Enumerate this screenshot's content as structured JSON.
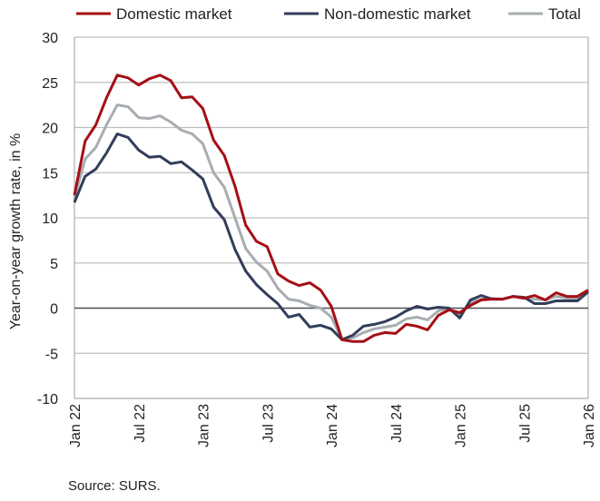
{
  "chart_data": {
    "type": "line",
    "title": "",
    "xlabel": "",
    "ylabel": "Year-on-year growth rate, in %",
    "ylim": [
      -10,
      30
    ],
    "yticks": [
      -10,
      -5,
      0,
      5,
      10,
      15,
      20,
      25,
      30
    ],
    "grid": true,
    "legend_position": "top",
    "x_tick_labels": [
      "Jan 22",
      "Jul 22",
      "Jan 23",
      "Jul 23",
      "Jan 24",
      "Jul 24",
      "Jan 25",
      "Jul 25",
      "Jan 26"
    ],
    "x_start": "Jan 2022",
    "x_end": "Jan 2026",
    "frequency": "monthly",
    "series": [
      {
        "name": "Domestic market",
        "color": "#A50F15",
        "values": [
          12.5,
          18.5,
          20.3,
          23.3,
          25.8,
          25.5,
          24.7,
          25.4,
          25.8,
          25.2,
          23.3,
          23.4,
          22.1,
          18.6,
          16.9,
          13.5,
          9.2,
          7.4,
          6.8,
          3.8,
          3.0,
          2.5,
          2.8,
          2.0,
          0.2,
          -3.5,
          -3.7,
          -3.7,
          -3.0,
          -2.7,
          -2.8,
          -1.8,
          -2.0,
          -2.4,
          -0.8,
          -0.2,
          -0.5,
          0.3,
          0.9,
          1.0,
          1.0,
          1.3,
          1.1,
          1.4,
          0.9,
          1.7,
          1.3,
          1.3,
          2.0
        ]
      },
      {
        "name": "Non-domestic market",
        "color": "#323E5A",
        "values": [
          11.7,
          14.6,
          15.4,
          17.2,
          19.3,
          18.9,
          17.5,
          16.7,
          16.8,
          16.0,
          16.2,
          15.3,
          14.3,
          11.2,
          9.8,
          6.5,
          4.1,
          2.6,
          1.5,
          0.5,
          -1.0,
          -0.7,
          -2.1,
          -1.9,
          -2.3,
          -3.5,
          -3.0,
          -2.0,
          -1.8,
          -1.5,
          -1.0,
          -0.3,
          0.2,
          -0.1,
          0.1,
          0.0,
          -1.1,
          0.9,
          1.4,
          1.0,
          1.0,
          1.3,
          1.2,
          0.5,
          0.5,
          0.8,
          0.8,
          0.8,
          1.8
        ]
      },
      {
        "name": "Total",
        "color": "#A8ADB2",
        "values": [
          12.2,
          16.5,
          17.8,
          20.3,
          22.5,
          22.3,
          21.1,
          21.0,
          21.3,
          20.6,
          19.7,
          19.3,
          18.2,
          15.0,
          13.4,
          10.0,
          6.6,
          5.1,
          4.1,
          2.2,
          1.0,
          0.8,
          0.3,
          0.0,
          -1.0,
          -3.5,
          -3.3,
          -2.7,
          -2.3,
          -2.1,
          -1.9,
          -1.2,
          -1.0,
          -1.3,
          -0.3,
          0.0,
          -0.7,
          0.6,
          1.0,
          1.1,
          1.0,
          1.3,
          1.2,
          1.0,
          0.9,
          1.3,
          1.1,
          1.1,
          2.0
        ]
      }
    ]
  },
  "source": "Source: SURS."
}
